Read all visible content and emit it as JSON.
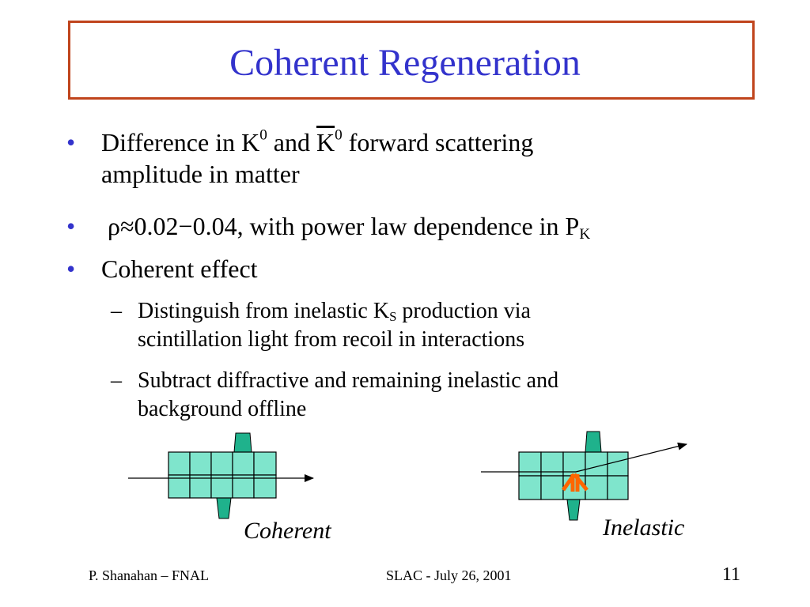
{
  "title": "Coherent Regeneration",
  "bullets": [
    {
      "line1_a": "Difference in K",
      "line1_sup1": "0",
      "line1_b": " and ",
      "line1_kbar": "K",
      "line1_sup2": "0",
      "line1_c": " forward scattering",
      "line2": "amplitude in matter"
    },
    {
      "text": "ρ≈0.02−0.04, with power law dependence in P",
      "subscript": "K"
    },
    {
      "text": "Coherent effect"
    }
  ],
  "subbullets": [
    {
      "line1_a": "Distinguish from inelastic K",
      "line1_sub": "S",
      "line1_b": " production via",
      "line2": "scintillation light from recoil in interactions"
    },
    {
      "line1": "Subtract diffractive and remaining inelastic and",
      "line2": "background offline"
    }
  ],
  "bullet_symbol": "•",
  "dash_symbol": "–",
  "diagrams": {
    "coherent_label": "Coherent",
    "inelastic_label": "Inelastic"
  },
  "footer": {
    "left": "P. Shanahan – FNAL",
    "center": "SLAC  -  July 26, 2001",
    "page": "11"
  },
  "colors": {
    "title": "#3333cc",
    "title_border": "#c0441c",
    "cell_fill": "#7fe5cc",
    "pmt_fill": "#1fb28c",
    "recoil": "#ff6600"
  }
}
